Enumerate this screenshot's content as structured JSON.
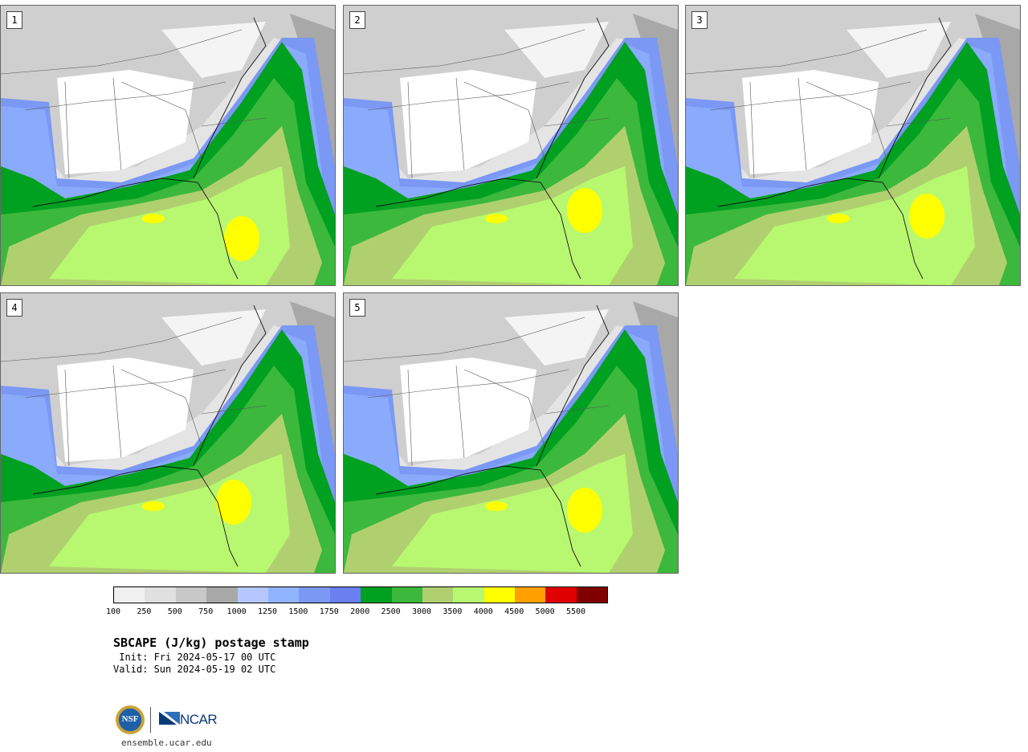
{
  "panels": [
    {
      "label": "1",
      "variant": 0
    },
    {
      "label": "2",
      "variant": 1
    },
    {
      "label": "3",
      "variant": 2
    },
    {
      "label": "4",
      "variant": 3
    },
    {
      "label": "5",
      "variant": 4
    }
  ],
  "colorbar": {
    "colors": [
      "#f0f0f0",
      "#e0e0e0",
      "#c8c8c8",
      "#a8a8a8",
      "#b4c8ff",
      "#91b4ff",
      "#7b98f5",
      "#6a80f0",
      "#00a020",
      "#3cb83c",
      "#b0d070",
      "#b8f870",
      "#ffff00",
      "#ffa000",
      "#e00000",
      "#800000"
    ],
    "ticks": [
      "100",
      "250",
      "500",
      "750",
      "1000",
      "1250",
      "1500",
      "1750",
      "2000",
      "2500",
      "3000",
      "3500",
      "4000",
      "4500",
      "5000",
      "5500"
    ]
  },
  "title": "SBCAPE (J/kg) postage stamp",
  "init_line": " Init: Fri 2024-05-17 00 UTC",
  "valid_line": "Valid: Sun 2024-05-19 02 UTC",
  "logos": {
    "nsf": "NSF",
    "ncar": "NCAR"
  },
  "url": "ensemble.ucar.edu"
}
